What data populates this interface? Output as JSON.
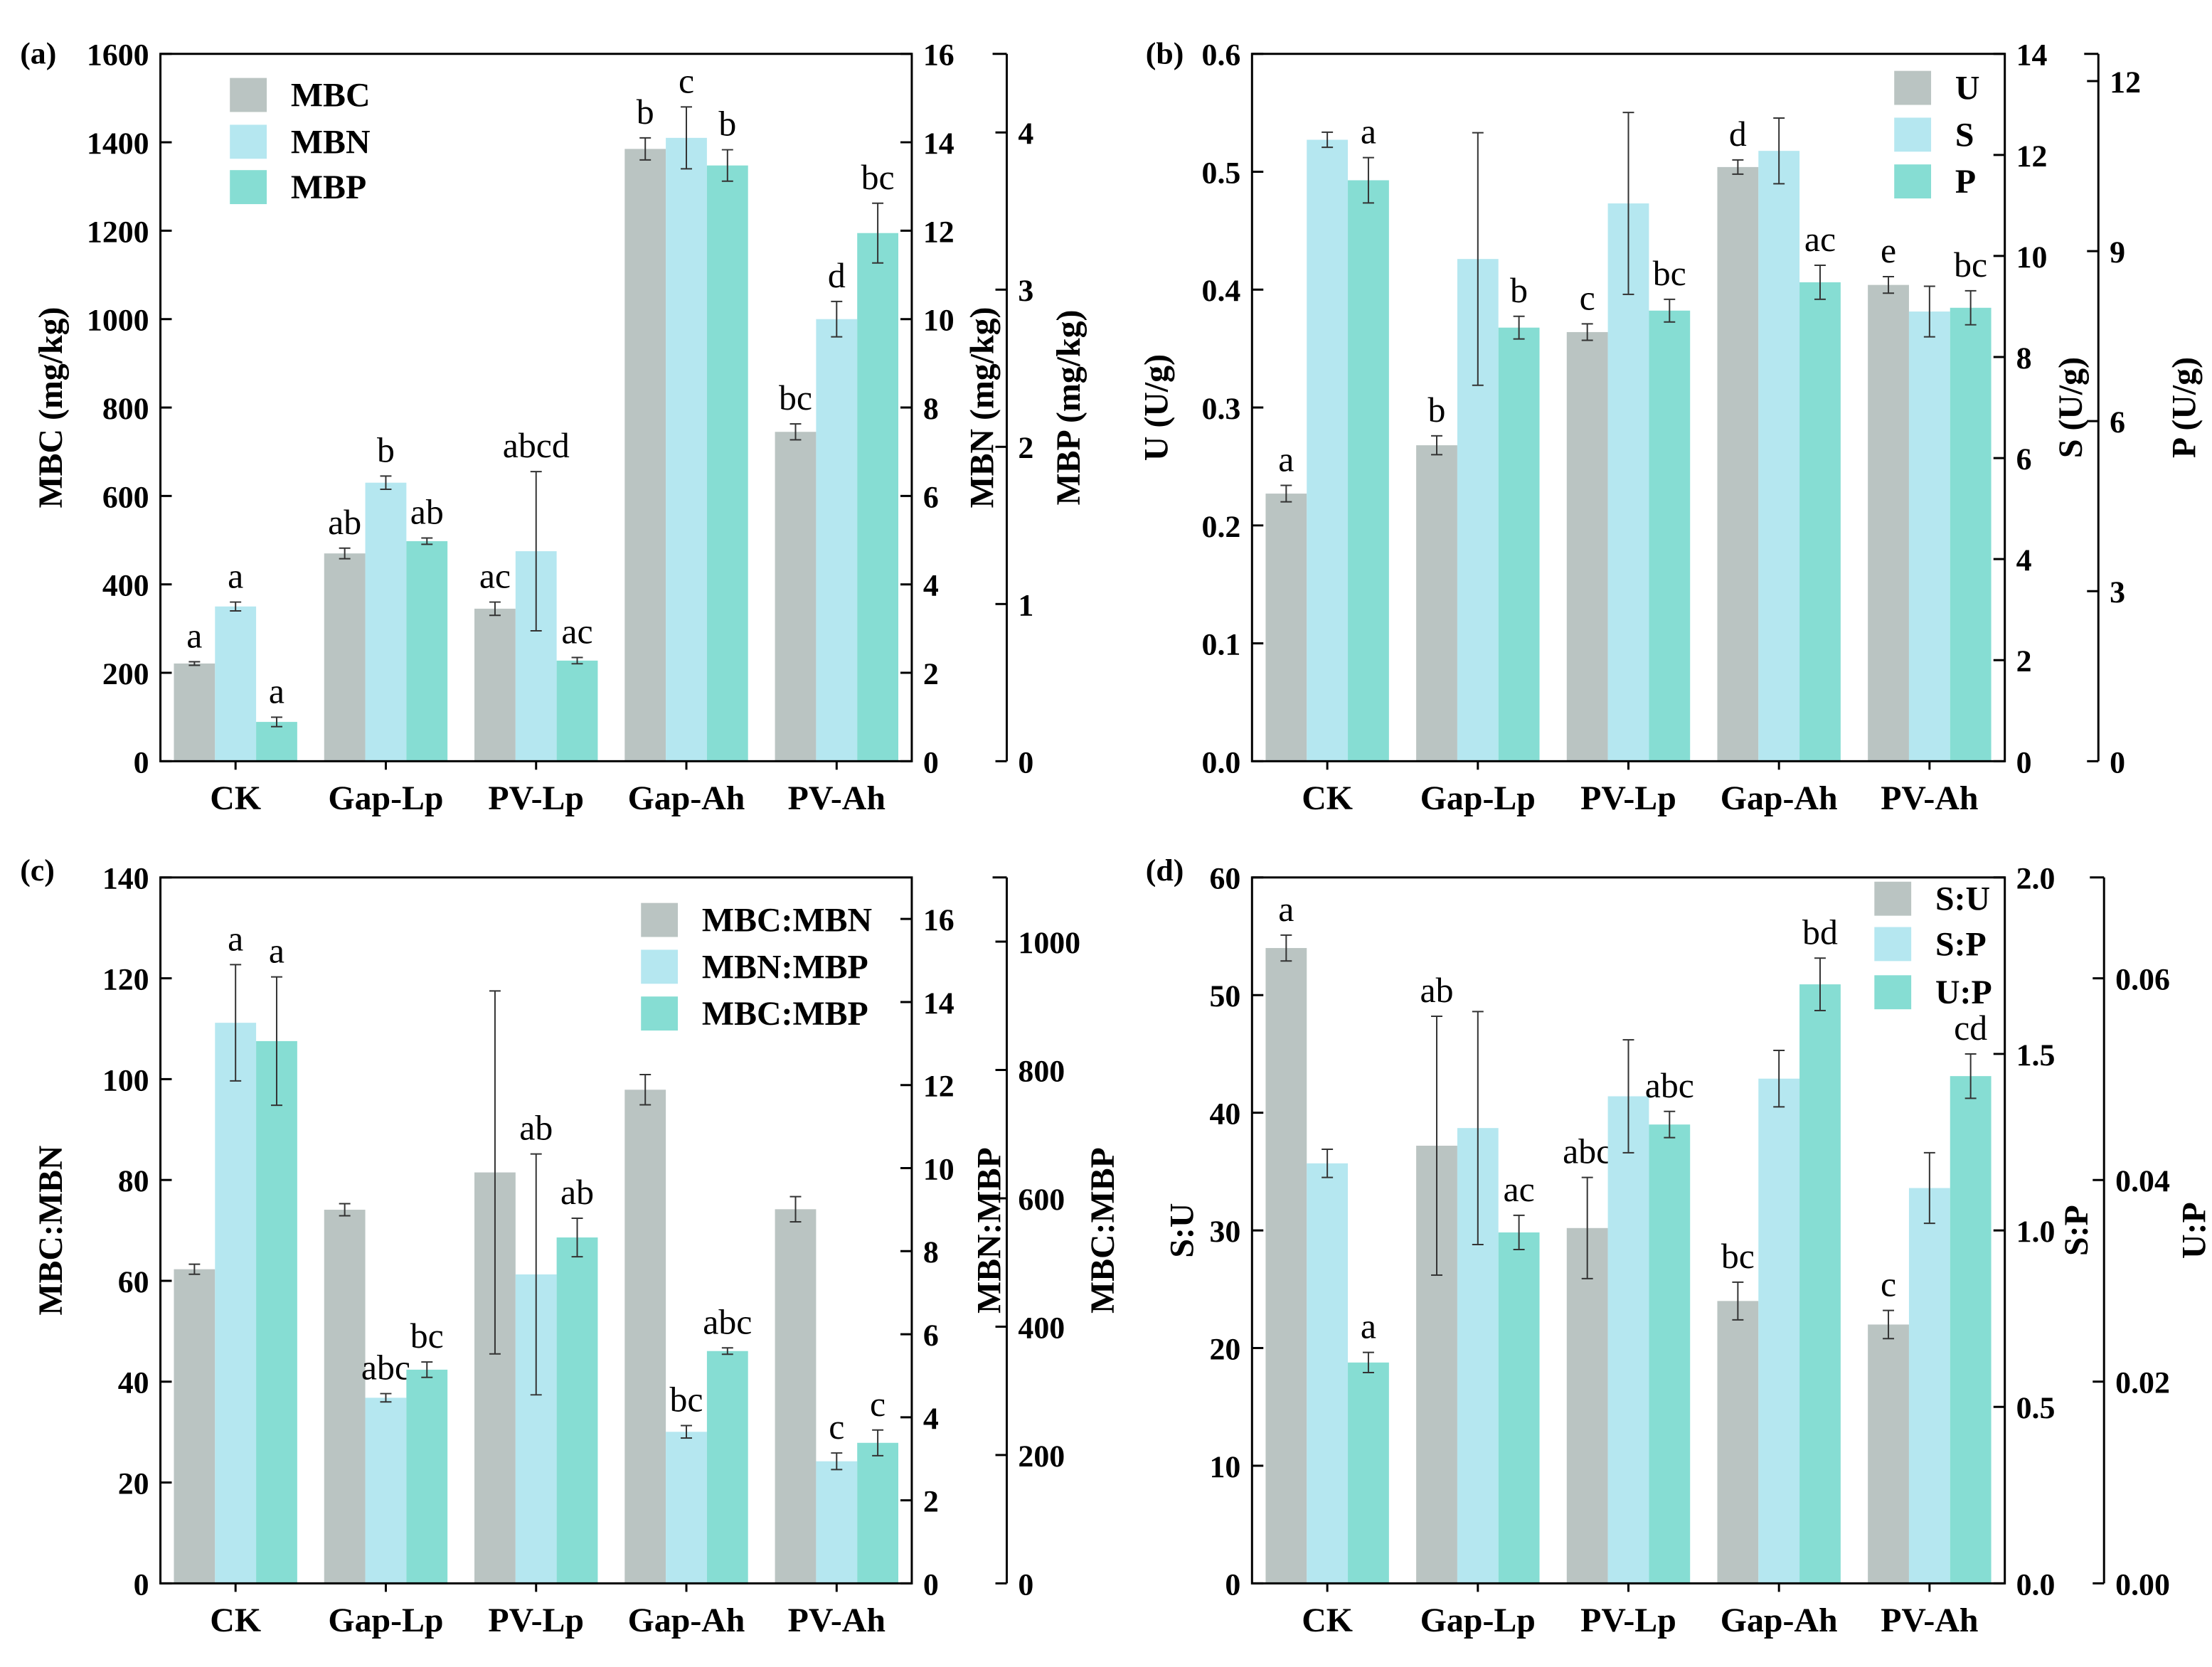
{
  "colors": {
    "series1": "#bac4c2",
    "series2": "#b5e7f0",
    "series3": "#86ddd3",
    "axis": "#000000"
  },
  "chart_data": [
    {
      "type": "bar",
      "panel_label": "(a)",
      "categories": [
        "CK",
        "Gap-Lp",
        "PV-Lp",
        "Gap-Ah",
        "PV-Ah"
      ],
      "axes": [
        {
          "id": "left",
          "label": "MBC (mg/kg)",
          "range": [
            0,
            1600
          ],
          "ticks": [
            0,
            200,
            400,
            600,
            800,
            1000,
            1200,
            1400,
            1600
          ]
        },
        {
          "id": "right1",
          "label": "MBN (mg/kg)",
          "range": [
            0,
            16
          ],
          "ticks": [
            0,
            2,
            4,
            6,
            8,
            10,
            12,
            14,
            16
          ]
        },
        {
          "id": "right2",
          "label": "MBP (mg/kg)",
          "range": [
            0,
            4.5
          ],
          "ticks": [
            0,
            1,
            2,
            3,
            4
          ]
        }
      ],
      "legend_position": "top-left",
      "series": [
        {
          "name": "MBC",
          "axis": 0,
          "values": [
            221,
            470,
            345,
            1385,
            745
          ],
          "errors": [
            4,
            12,
            15,
            25,
            18
          ],
          "letters": [
            "a",
            "ab",
            "ac",
            "b",
            "bc"
          ]
        },
        {
          "name": "MBN",
          "axis": 1,
          "values": [
            3.5,
            6.3,
            4.75,
            14.1,
            10.0
          ],
          "errors": [
            0.1,
            0.15,
            1.8,
            0.7,
            0.4
          ],
          "letters": [
            "a",
            "b",
            "abcd",
            "c",
            "d"
          ]
        },
        {
          "name": "MBP",
          "axis": 2,
          "values": [
            0.25,
            1.4,
            0.64,
            3.79,
            3.36
          ],
          "errors": [
            0.03,
            0.02,
            0.02,
            0.1,
            0.19
          ],
          "letters": [
            "a",
            "ab",
            "ac",
            "b",
            "bc"
          ]
        }
      ]
    },
    {
      "type": "bar",
      "panel_label": "(b)",
      "categories": [
        "CK",
        "Gap-Lp",
        "PV-Lp",
        "Gap-Ah",
        "PV-Ah"
      ],
      "axes": [
        {
          "id": "left",
          "label": "U (U/g)",
          "range": [
            0,
            0.6
          ],
          "ticks": [
            0.0,
            0.1,
            0.2,
            0.3,
            0.4,
            0.5,
            0.6
          ],
          "decimals": 1
        },
        {
          "id": "right1",
          "label": "S (U/g)",
          "range": [
            0,
            14
          ],
          "ticks": [
            0,
            2,
            4,
            6,
            8,
            10,
            12,
            14
          ]
        },
        {
          "id": "right2",
          "label": "P (U/g)",
          "range": [
            0,
            12.48
          ],
          "ticks": [
            0,
            3,
            6,
            9,
            12
          ]
        }
      ],
      "legend_position": "top-right",
      "series": [
        {
          "name": "U",
          "axis": 0,
          "values": [
            0.227,
            0.268,
            0.364,
            0.504,
            0.404
          ],
          "errors": [
            0.007,
            0.008,
            0.007,
            0.006,
            0.007
          ],
          "letters": [
            "a",
            "b",
            "c",
            "d",
            "e"
          ]
        },
        {
          "name": "S",
          "axis": 1,
          "values": [
            12.3,
            9.94,
            11.04,
            12.08,
            8.9
          ],
          "errors": [
            0.15,
            2.5,
            1.8,
            0.65,
            0.5
          ],
          "letters": [
            null,
            null,
            null,
            null,
            null
          ]
        },
        {
          "name": "P",
          "axis": 2,
          "values": [
            10.25,
            7.65,
            7.95,
            8.45,
            8.0
          ],
          "errors": [
            0.4,
            0.2,
            0.2,
            0.3,
            0.3
          ],
          "letters": [
            "a",
            "b",
            "bc",
            "ac",
            "bc"
          ]
        }
      ]
    },
    {
      "type": "bar",
      "panel_label": "(c)",
      "categories": [
        "CK",
        "Gap-Lp",
        "PV-Lp",
        "Gap-Ah",
        "PV-Ah"
      ],
      "axes": [
        {
          "id": "left",
          "label": "MBC:MBN",
          "range": [
            0,
            140
          ],
          "ticks": [
            0,
            20,
            40,
            60,
            80,
            100,
            120,
            140
          ]
        },
        {
          "id": "right1",
          "label": "MBN:MBP",
          "range": [
            0,
            17
          ],
          "ticks": [
            0,
            2,
            4,
            6,
            8,
            10,
            12,
            14,
            16
          ]
        },
        {
          "id": "right2",
          "label": "MBC:MBP",
          "range": [
            0,
            1100
          ],
          "ticks": [
            0,
            200,
            400,
            600,
            800,
            1000
          ]
        }
      ],
      "legend_position": "top-right",
      "series": [
        {
          "name": "MBC:MBN",
          "axis": 0,
          "values": [
            62.3,
            74.1,
            81.5,
            97.9,
            74.2
          ],
          "errors": [
            1.0,
            1.2,
            36.0,
            3.0,
            2.5
          ],
          "letters": [
            null,
            null,
            null,
            null,
            null
          ]
        },
        {
          "name": "MBN:MBP",
          "axis": 1,
          "values": [
            13.5,
            4.47,
            7.44,
            3.65,
            2.94
          ],
          "errors": [
            1.4,
            0.1,
            2.9,
            0.15,
            0.2
          ],
          "letters": [
            "a",
            "abc",
            "ab",
            "bc",
            "c"
          ]
        },
        {
          "name": "MBC:MBP",
          "axis": 2,
          "values": [
            845,
            333,
            539,
            362,
            219
          ],
          "errors": [
            100,
            12,
            30,
            5,
            20
          ],
          "letters": [
            "a",
            "bc",
            "ab",
            "abc",
            "c"
          ]
        }
      ]
    },
    {
      "type": "bar",
      "panel_label": "(d)",
      "categories": [
        "CK",
        "Gap-Lp",
        "PV-Lp",
        "Gap-Ah",
        "PV-Ah"
      ],
      "axes": [
        {
          "id": "left",
          "label": "S:U",
          "range": [
            0,
            60
          ],
          "ticks": [
            0,
            10,
            20,
            30,
            40,
            50,
            60
          ]
        },
        {
          "id": "right1",
          "label": "S:P",
          "range": [
            0,
            2.0
          ],
          "ticks": [
            0.0,
            0.5,
            1.0,
            1.5,
            2.0
          ],
          "decimals": 1
        },
        {
          "id": "right2",
          "label": "U:P",
          "range": [
            0,
            0.07
          ],
          "ticks": [
            0.0,
            0.02,
            0.04,
            0.06
          ],
          "decimals": 2
        }
      ],
      "legend_position": "top-right",
      "series": [
        {
          "name": "S:U",
          "axis": 0,
          "values": [
            54.0,
            37.2,
            30.2,
            24.0,
            22.0
          ],
          "errors": [
            1.1,
            11.0,
            4.3,
            1.6,
            1.2
          ],
          "letters": [
            "a",
            "ab",
            "abc",
            "bc",
            "c"
          ]
        },
        {
          "name": "S:P",
          "axis": 1,
          "values": [
            1.19,
            1.29,
            1.38,
            1.43,
            1.12
          ],
          "errors": [
            0.04,
            0.33,
            0.16,
            0.08,
            0.1
          ],
          "letters": [
            null,
            null,
            null,
            null,
            null
          ]
        },
        {
          "name": "U:P",
          "axis": 2,
          "values": [
            0.0219,
            0.0348,
            0.0455,
            0.0594,
            0.0503
          ],
          "errors": [
            0.001,
            0.0017,
            0.0013,
            0.0026,
            0.0022
          ],
          "letters": [
            "a",
            "ac",
            "abc",
            "bd",
            "cd"
          ]
        }
      ]
    }
  ]
}
